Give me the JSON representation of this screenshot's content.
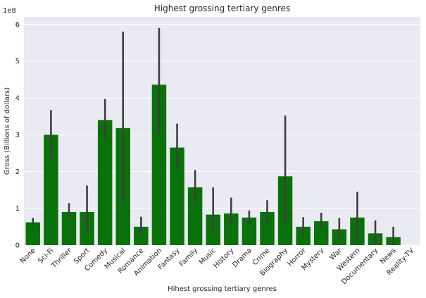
{
  "chart_data": {
    "type": "bar",
    "title": "Highest grossing tertiary genres",
    "xlabel": "Hihest grossing tertiary genres",
    "ylabel": "Gross (Billions of dollars)",
    "y_scale_label": "1e8",
    "ylim": [
      0,
      6.2
    ],
    "yticks": [
      0,
      1,
      2,
      3,
      4,
      5,
      6
    ],
    "grid": true,
    "categories": [
      "None",
      "Sci-Fi",
      "Thriller",
      "Sport",
      "Comedy",
      "Musical",
      "Romance",
      "Animation",
      "Fantasy",
      "Family",
      "Music",
      "History",
      "Drama",
      "Crime",
      "Biography",
      "Horror",
      "Mystery",
      "War",
      "Western",
      "Documentary",
      "News",
      "Reality-TV"
    ],
    "values": [
      0.62,
      3.0,
      0.9,
      0.9,
      3.4,
      3.18,
      0.5,
      4.36,
      2.65,
      1.57,
      0.83,
      0.86,
      0.75,
      0.9,
      1.87,
      0.5,
      0.65,
      0.43,
      0.75,
      0.32,
      0.22,
      0.0
    ],
    "ci_low": [
      0.55,
      2.35,
      0.75,
      0.4,
      2.9,
      1.15,
      0.3,
      3.05,
      2.1,
      1.15,
      0.38,
      0.55,
      0.55,
      0.62,
      0.55,
      0.28,
      0.48,
      0.18,
      0.1,
      0.05,
      0.02,
      0.0
    ],
    "ci_high": [
      0.72,
      3.65,
      1.12,
      1.6,
      3.95,
      5.78,
      0.75,
      5.88,
      3.28,
      2.02,
      1.55,
      1.27,
      0.92,
      1.2,
      3.5,
      0.74,
      0.86,
      0.72,
      1.43,
      0.65,
      0.48,
      0.0
    ],
    "bar_color": "#0a720a",
    "errorbar_color": "#3f3f3f",
    "background_color": "#eaeaf2",
    "grid_color": "#ffffff"
  }
}
